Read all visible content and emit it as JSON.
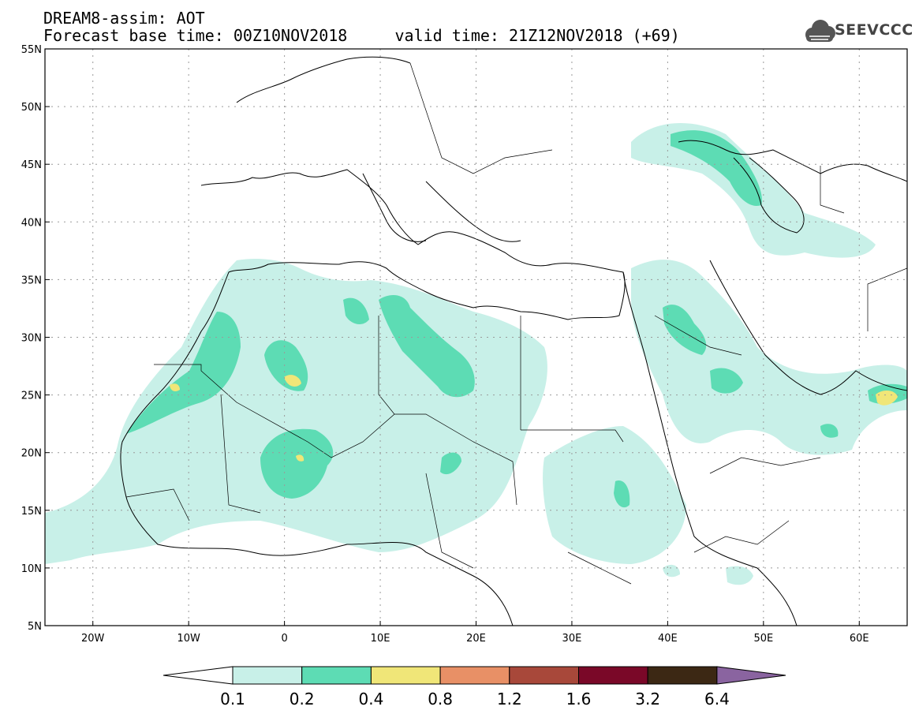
{
  "header": {
    "line1": "DREAM8-assim: AOT",
    "line2": "Forecast base time: 00Z10NOV2018     valid time: 21Z12NOV2018 (+69)"
  },
  "logo": {
    "text": "SEEVCCC",
    "icon": "cloud-logo-icon"
  },
  "map": {
    "lon_range": [
      -25,
      65
    ],
    "lat_range": [
      5,
      55
    ],
    "lat_labels": [
      {
        "lat": 55,
        "text": "55N"
      },
      {
        "lat": 50,
        "text": "50N"
      },
      {
        "lat": 45,
        "text": "45N"
      },
      {
        "lat": 40,
        "text": "40N"
      },
      {
        "lat": 35,
        "text": "35N"
      },
      {
        "lat": 30,
        "text": "30N"
      },
      {
        "lat": 25,
        "text": "25N"
      },
      {
        "lat": 20,
        "text": "20N"
      },
      {
        "lat": 15,
        "text": "15N"
      },
      {
        "lat": 10,
        "text": "10N"
      },
      {
        "lat": 5,
        "text": "5N"
      }
    ],
    "lon_labels": [
      {
        "lon": -20,
        "text": "20W"
      },
      {
        "lon": -10,
        "text": "10W"
      },
      {
        "lon": 0,
        "text": "0"
      },
      {
        "lon": 10,
        "text": "10E"
      },
      {
        "lon": 20,
        "text": "20E"
      },
      {
        "lon": 30,
        "text": "30E"
      },
      {
        "lon": 40,
        "text": "40E"
      },
      {
        "lon": 50,
        "text": "50E"
      },
      {
        "lon": 60,
        "text": "60E"
      }
    ],
    "gridlines": true
  },
  "colorbar": {
    "colors": [
      "#ffffff",
      "#c8f0e8",
      "#5ddcb4",
      "#f0e678",
      "#e89066",
      "#a8483a",
      "#7a0828",
      "#3c2814",
      "#8a64a0"
    ],
    "labels": [
      "0.1",
      "0.2",
      "0.4",
      "0.8",
      "1.2",
      "1.6",
      "3.2",
      "6.4"
    ]
  }
}
